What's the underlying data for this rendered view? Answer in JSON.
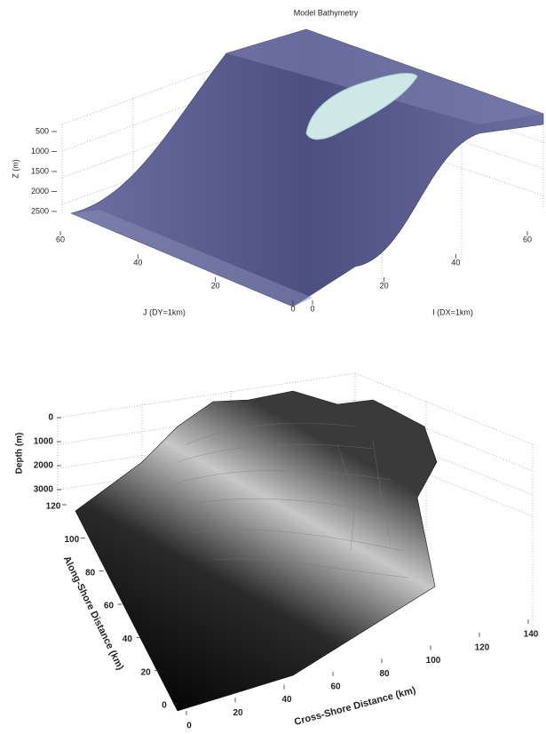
{
  "figures": [
    {
      "title": "Model Bathymetry",
      "z_label": "Z (m)",
      "z_ticks": [
        500,
        1000,
        1500,
        2000,
        2500
      ],
      "j_label": "J (DY=1km)",
      "j_ticks": [
        60,
        40,
        20,
        0
      ],
      "i_label": "I (DX=1km)",
      "i_ticks": [
        0,
        20,
        40,
        60
      ]
    },
    {
      "z_label": "Depth (m)",
      "z_ticks": [
        0,
        1000,
        2000,
        3000
      ],
      "y_label": "Along-Shore Distance (km)",
      "y_ticks": [
        0,
        20,
        40,
        60,
        80,
        100,
        120
      ],
      "x_label": "Cross-Shore Distance (km)",
      "x_ticks": [
        0,
        20,
        40,
        60,
        80,
        100,
        120,
        140
      ]
    }
  ]
}
